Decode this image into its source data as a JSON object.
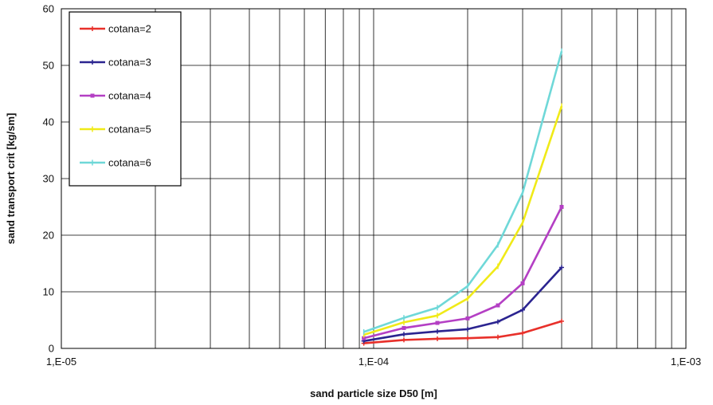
{
  "chart_data": {
    "type": "line",
    "xscale": "log",
    "xlabel": "sand particle size D50 [m]",
    "ylabel": "sand transport crit [kg/sm]",
    "xlim": [
      1e-05,
      0.001
    ],
    "ylim": [
      0,
      60
    ],
    "x_ticks": [
      1e-05,
      0.0001,
      0.001
    ],
    "x_tick_labels": [
      "1,E-05",
      "1,E-04",
      "1,E-03"
    ],
    "y_ticks": [
      0,
      10,
      20,
      30,
      40,
      50,
      60
    ],
    "y_tick_labels": [
      "0",
      "10",
      "20",
      "30",
      "40",
      "50",
      "60"
    ],
    "grid": true,
    "legend_position": "top-left",
    "x": [
      9.3e-05,
      0.000125,
      0.00016,
      0.0002,
      0.00025,
      0.0003,
      0.0004
    ],
    "series": [
      {
        "name": "cotana=2",
        "color": "#e8302a",
        "marker": "plus",
        "values": [
          0.9,
          1.5,
          1.7,
          1.8,
          2.0,
          2.7,
          4.8
        ]
      },
      {
        "name": "cotana=3",
        "color": "#2b2490",
        "marker": "plus",
        "values": [
          1.3,
          2.5,
          3.0,
          3.4,
          4.7,
          6.8,
          14.3
        ]
      },
      {
        "name": "cotana=4",
        "color": "#b43fc4",
        "marker": "square",
        "values": [
          1.8,
          3.6,
          4.5,
          5.3,
          7.6,
          11.5,
          25.0
        ]
      },
      {
        "name": "cotana=5",
        "color": "#f0ea18",
        "marker": "line",
        "values": [
          2.4,
          4.6,
          5.8,
          8.8,
          14.5,
          22.2,
          42.8
        ]
      },
      {
        "name": "cotana=6",
        "color": "#6fd8d8",
        "marker": "line",
        "values": [
          2.9,
          5.4,
          7.2,
          11.0,
          18.3,
          27.5,
          52.5
        ]
      }
    ]
  }
}
